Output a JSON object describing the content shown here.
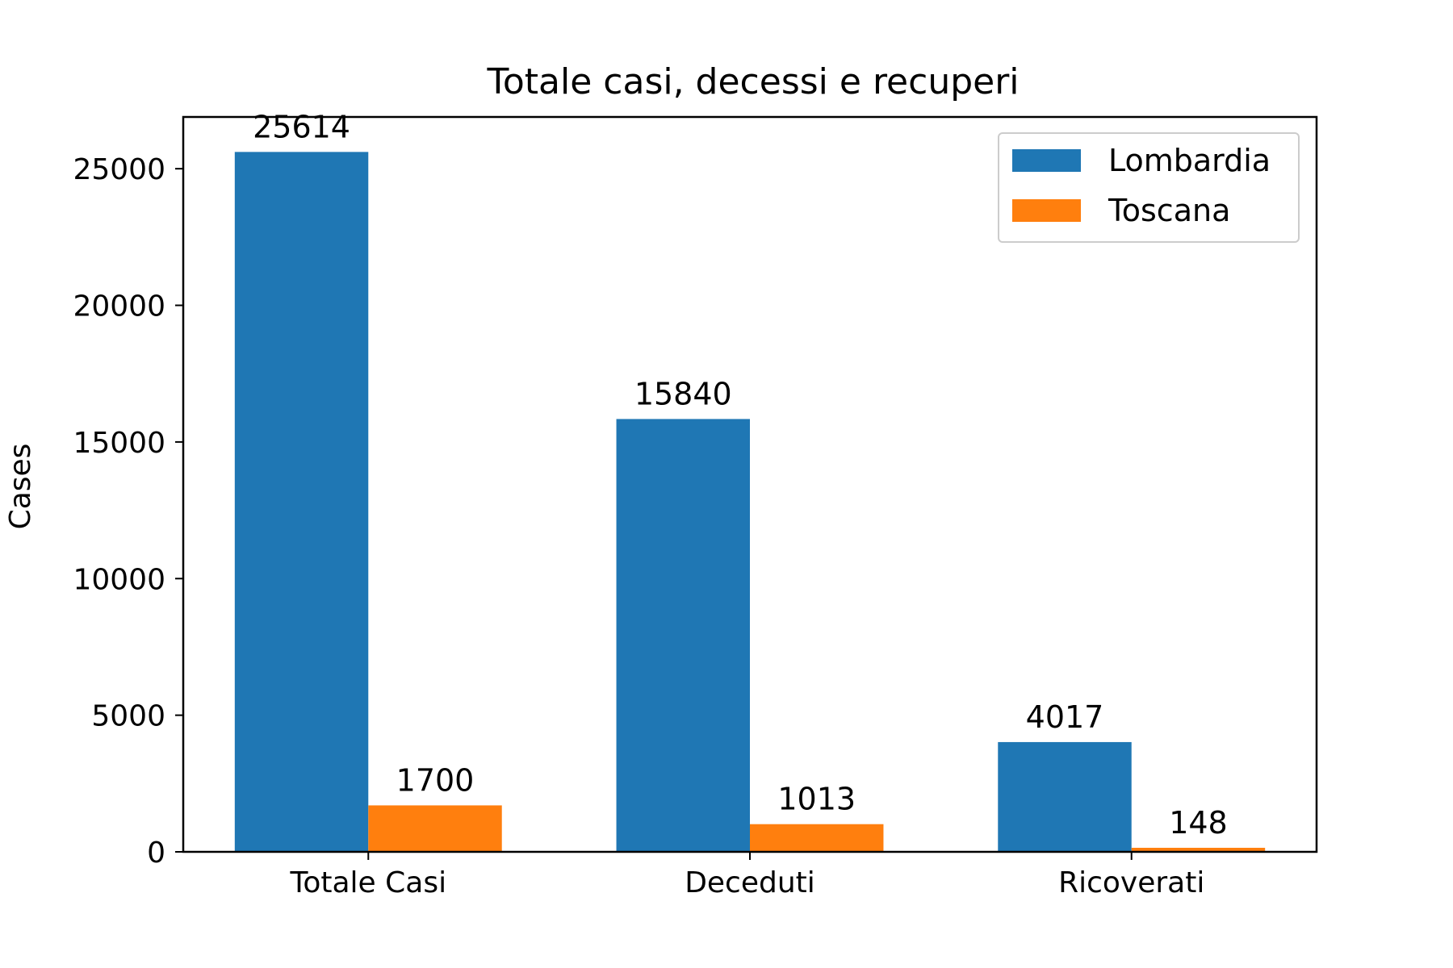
{
  "chart_data": {
    "type": "bar",
    "title": "Totale casi, decessi e recuperi",
    "xlabel": "",
    "ylabel": "Cases",
    "categories": [
      "Totale Casi",
      "Deceduti",
      "Ricoverati"
    ],
    "series": [
      {
        "name": "Lombardia",
        "values": [
          25614,
          15840,
          4017
        ],
        "color": "#1f77b4"
      },
      {
        "name": "Toscana",
        "values": [
          1700,
          1013,
          148
        ],
        "color": "#ff7f0e"
      }
    ],
    "ylim": [
      0,
      26894
    ],
    "yticks": [
      0,
      5000,
      10000,
      15000,
      20000,
      25000
    ],
    "data_labels": true,
    "grid": false,
    "legend_position": "upper right"
  }
}
